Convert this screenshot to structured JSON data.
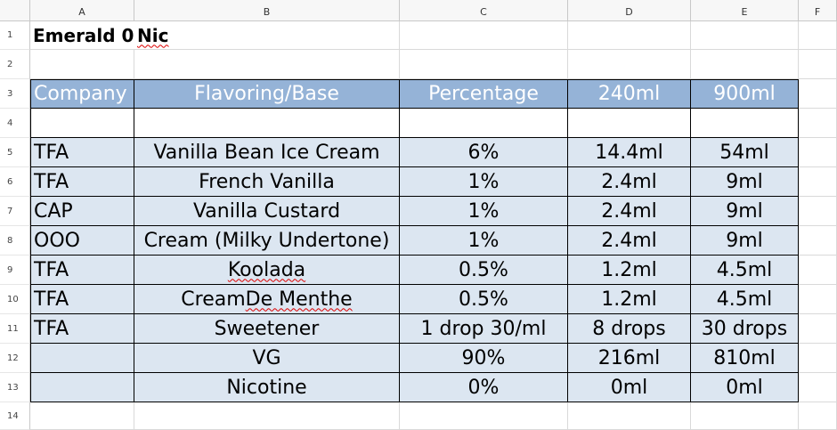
{
  "columns": [
    "A",
    "B",
    "C",
    "D",
    "E",
    "F"
  ],
  "rows": [
    "1",
    "2",
    "3",
    "4",
    "5",
    "6",
    "7",
    "8",
    "9",
    "10",
    "11",
    "12",
    "13",
    "14"
  ],
  "title": {
    "part1": "Emerald 0",
    "part2": "Nic"
  },
  "header": [
    "Company",
    "Flavoring/Base",
    "Percentage",
    "240ml",
    "900ml"
  ],
  "data": [
    [
      "TFA",
      "Vanilla Bean Ice Cream",
      "6%",
      "14.4ml",
      "54ml"
    ],
    [
      "TFA",
      "French Vanilla",
      "1%",
      "2.4ml",
      "9ml"
    ],
    [
      "CAP",
      "Vanilla Custard",
      "1%",
      "2.4ml",
      "9ml"
    ],
    [
      "OOO",
      "Cream (Milky Undertone)",
      "1%",
      "2.4ml",
      "9ml"
    ],
    [
      "TFA",
      "Koolada",
      "0.5%",
      "1.2ml",
      "4.5ml"
    ],
    [
      "TFA",
      "Cream De Menthe",
      "0.5%",
      "1.2ml",
      "4.5ml"
    ],
    [
      "TFA",
      "Sweetener",
      "1 drop 30/ml",
      "8 drops",
      "30 drops"
    ],
    [
      "",
      "VG",
      "90%",
      "216ml",
      "810ml"
    ],
    [
      "",
      "Nicotine",
      "0%",
      "0ml",
      "0ml"
    ]
  ],
  "colors": {
    "header_fill": "#95b3d7",
    "body_fill": "#dce6f1"
  }
}
